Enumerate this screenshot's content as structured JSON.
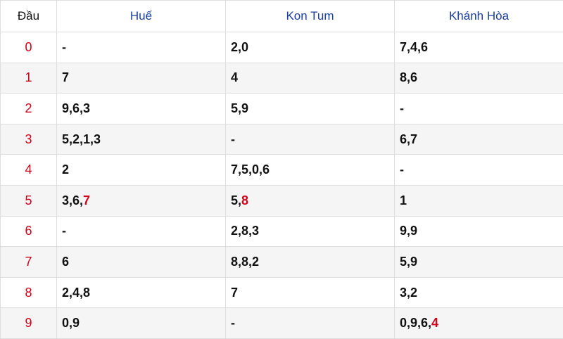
{
  "table": {
    "header": [
      "Đầu",
      "Huế",
      "Kon Tum",
      "Khánh Hòa"
    ],
    "rows": [
      [
        "0",
        "-",
        "2,0",
        "7,4,6"
      ],
      [
        "1",
        "7",
        "4",
        "8,6"
      ],
      [
        "2",
        "9,6,3",
        "5,9",
        "-"
      ],
      [
        "3",
        "5,2,1,3",
        "-",
        "6,7"
      ],
      [
        "4",
        "2",
        "7,5,0,6",
        "-"
      ],
      [
        "5",
        {
          "text": "3,6,",
          "highlight": "7"
        },
        {
          "text": "5,",
          "highlight": "8"
        },
        "1"
      ],
      [
        "6",
        "-",
        "2,8,3",
        "9,9"
      ],
      [
        "7",
        "6",
        "8,8,2",
        "5,9"
      ],
      [
        "8",
        "2,4,8",
        "7",
        "3,2"
      ],
      [
        "9",
        "0,9",
        "-",
        {
          "text": "0,9,6,",
          "highlight": "4"
        }
      ]
    ]
  }
}
